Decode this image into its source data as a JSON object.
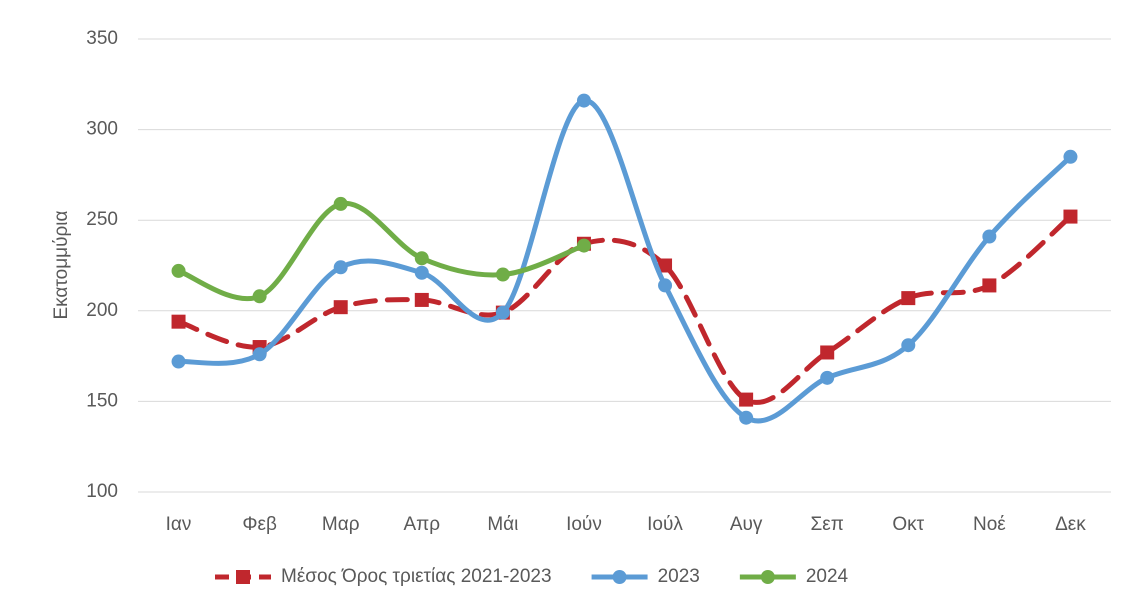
{
  "chart_data": {
    "type": "line",
    "y_label": "Εκατομμύρια",
    "categories": [
      "Ιαν",
      "Φεβ",
      "Μαρ",
      "Απρ",
      "Μάι",
      "Ιούν",
      "Ιούλ",
      "Αυγ",
      "Σεπ",
      "Οκτ",
      "Νοέ",
      "Δεκ"
    ],
    "series": [
      {
        "name": "Μέσος Όρος τριετίας 2021-2023",
        "color": "#c0272d",
        "dashed": true,
        "marker": "square",
        "values": [
          194,
          180,
          202,
          206,
          199,
          237,
          225,
          151,
          177,
          207,
          214,
          252
        ]
      },
      {
        "name": "2023",
        "color": "#5b9bd5",
        "dashed": false,
        "marker": "circle",
        "values": [
          172,
          176,
          224,
          221,
          199,
          316,
          214,
          141,
          163,
          181,
          241,
          285
        ]
      },
      {
        "name": "2024",
        "color": "#70ad47",
        "dashed": false,
        "marker": "circle",
        "values": [
          222,
          208,
          259,
          229,
          220,
          236,
          null,
          null,
          null,
          null,
          null,
          null
        ]
      }
    ],
    "ylim": [
      100,
      350
    ],
    "yticks": [
      100,
      150,
      200,
      250,
      300,
      350
    ],
    "grid": true,
    "smooth": true,
    "legend": "bottom"
  }
}
